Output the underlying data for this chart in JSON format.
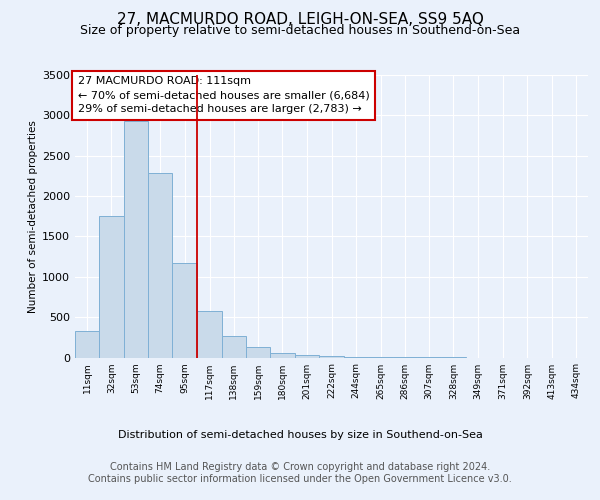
{
  "title": "27, MACMURDO ROAD, LEIGH-ON-SEA, SS9 5AQ",
  "subtitle": "Size of property relative to semi-detached houses in Southend-on-Sea",
  "xlabel": "Distribution of semi-detached houses by size in Southend-on-Sea",
  "ylabel": "Number of semi-detached properties",
  "footer1": "Contains HM Land Registry data © Crown copyright and database right 2024.",
  "footer2": "Contains public sector information licensed under the Open Government Licence v3.0.",
  "annotation_line1": "27 MACMURDO ROAD: 111sqm",
  "annotation_line2": "← 70% of semi-detached houses are smaller (6,684)",
  "annotation_line3": "29% of semi-detached houses are larger (2,783) →",
  "bar_labels": [
    "11sqm",
    "32sqm",
    "53sqm",
    "74sqm",
    "95sqm",
    "117sqm",
    "138sqm",
    "159sqm",
    "180sqm",
    "201sqm",
    "222sqm",
    "244sqm",
    "265sqm",
    "286sqm",
    "307sqm",
    "328sqm",
    "349sqm",
    "371sqm",
    "392sqm",
    "413sqm",
    "434sqm"
  ],
  "bar_edges": [
    11,
    32,
    53,
    74,
    95,
    117,
    138,
    159,
    180,
    201,
    222,
    244,
    265,
    286,
    307,
    328,
    349,
    371,
    392,
    413,
    434,
    455
  ],
  "bar_heights": [
    330,
    1750,
    2930,
    2280,
    1170,
    580,
    270,
    130,
    50,
    30,
    20,
    10,
    5,
    3,
    2,
    1,
    0,
    0,
    0,
    0,
    0
  ],
  "bar_color": "#c9daea",
  "bar_edge_color": "#7fb0d5",
  "vline_color": "#cc0000",
  "vline_x": 117,
  "ylim": [
    0,
    3500
  ],
  "yticks": [
    0,
    500,
    1000,
    1500,
    2000,
    2500,
    3000,
    3500
  ],
  "bg_color": "#eaf1fb",
  "plot_bg_color": "#eaf1fb",
  "grid_color": "#ffffff",
  "title_fontsize": 11,
  "subtitle_fontsize": 9,
  "annotation_fontsize": 8,
  "footer_fontsize": 7
}
